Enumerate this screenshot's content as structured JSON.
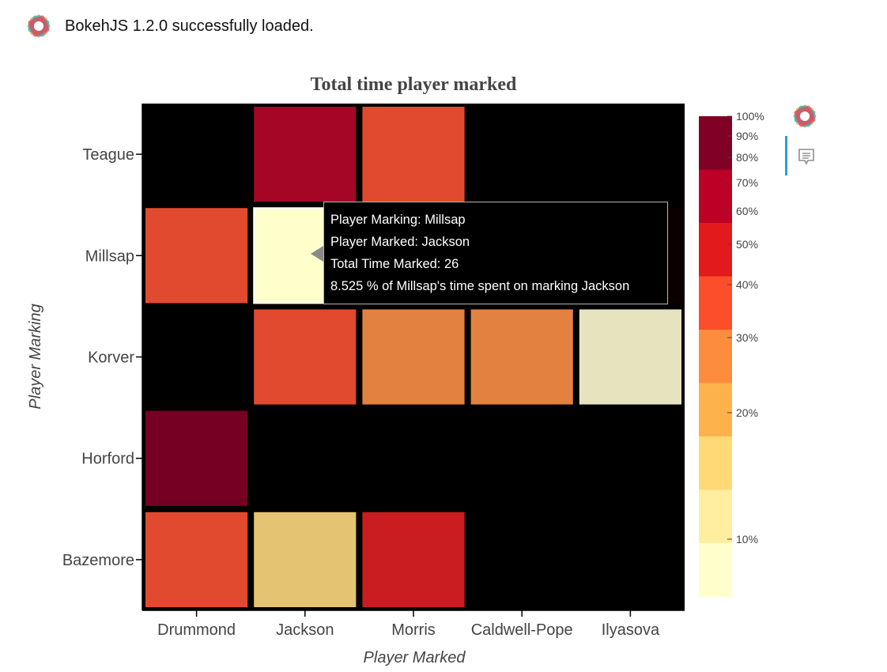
{
  "load_message": "BokehJS 1.2.0 successfully loaded.",
  "toolbar": {
    "logo_icon": "bokeh-logo-icon",
    "hover_tool_icon": "hover-tool-icon",
    "active_color": "#27a0d7"
  },
  "chart_data": {
    "type": "heatmap",
    "title": "Total time player marked",
    "xlabel": "Player Marked",
    "ylabel": "Player Marking",
    "x_categories": [
      "Drummond",
      "Jackson",
      "Morris",
      "Caldwell-Pope",
      "Ilyasova"
    ],
    "y_categories": [
      "Teague",
      "Millsap",
      "Korver",
      "Horford",
      "Bazemore"
    ],
    "background": "#000000",
    "cells": [
      {
        "y": "Teague",
        "x": "Jackson",
        "percent": 65
      },
      {
        "y": "Teague",
        "x": "Morris",
        "percent": 37
      },
      {
        "y": "Millsap",
        "x": "Drummond",
        "percent": 37
      },
      {
        "y": "Millsap",
        "x": "Jackson",
        "percent": 8.525
      },
      {
        "y": "Millsap",
        "x": "Ilyasova",
        "percent": 100
      },
      {
        "y": "Korver",
        "x": "Jackson",
        "percent": 37
      },
      {
        "y": "Korver",
        "x": "Morris",
        "percent": 29
      },
      {
        "y": "Korver",
        "x": "Caldwell-Pope",
        "percent": 29
      },
      {
        "y": "Korver",
        "x": "Ilyasova",
        "percent": 12
      },
      {
        "y": "Horford",
        "x": "Drummond",
        "percent": 90
      },
      {
        "y": "Bazemore",
        "x": "Drummond",
        "percent": 37
      },
      {
        "y": "Bazemore",
        "x": "Jackson",
        "percent": 17
      },
      {
        "y": "Bazemore",
        "x": "Morris",
        "percent": 53
      }
    ],
    "cell_colors": {
      "Teague|Jackson": "#a50626",
      "Teague|Morris": "#e24a30",
      "Millsap|Drummond": "#e24a30",
      "Millsap|Jackson": "#ffffcc",
      "Millsap|Ilyasova": "#0b0000",
      "Korver|Jackson": "#e24a30",
      "Korver|Morris": "#e38140",
      "Korver|Caldwell-Pope": "#e38140",
      "Korver|Ilyasova": "#e6e3bf",
      "Horford|Drummond": "#760023",
      "Bazemore|Drummond": "#e24a30",
      "Bazemore|Jackson": "#e4c472",
      "Bazemore|Morris": "#c91d22"
    },
    "color_bar": {
      "palette": [
        "#800026",
        "#bd0026",
        "#e31a1c",
        "#fc4e2a",
        "#fd8d3c",
        "#feb24c",
        "#fed976",
        "#ffeda0",
        "#ffffcc"
      ],
      "tick_labels": [
        "100%",
        "90%",
        "80%",
        "70%",
        "60%",
        "50%",
        "40%",
        "30%",
        "20%",
        "10%"
      ]
    },
    "tooltip": {
      "lines": [
        "Player Marking: Millsap",
        "Player Marked: Jackson",
        "Total Time Marked: 26",
        "8.525 % of Millsap's time spent on marking Jackson"
      ]
    }
  }
}
